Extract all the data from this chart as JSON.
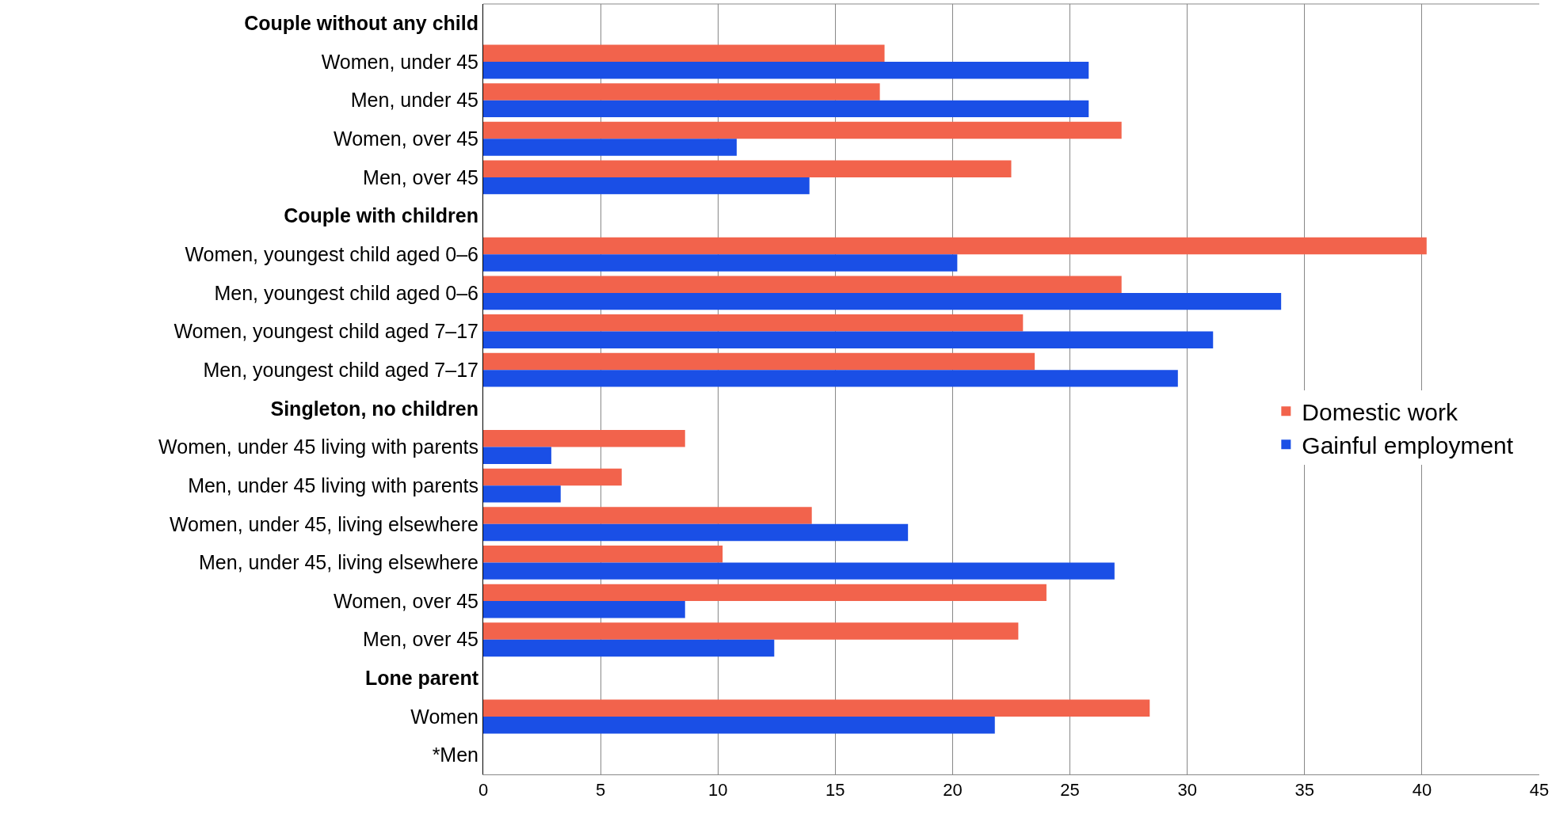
{
  "chart_data": {
    "type": "bar",
    "orientation": "horizontal",
    "categories": [
      "Couple without any child",
      "Women, under 45",
      "Men, under 45",
      "Women, over 45",
      "Men, over 45",
      "Couple with children",
      "Women, youngest child aged 0–6",
      "Men, youngest child aged 0–6",
      "Women, youngest child aged 7–17",
      "Men, youngest child aged 7–17",
      "Singleton, no children",
      "Women, under 45 living with parents",
      "Men, under 45 living with parents",
      "Women, under 45, living elsewhere",
      "Men, under 45, living elsewhere",
      "Women, over 45",
      "Men, over 45",
      "Lone parent",
      "Women",
      "*Men"
    ],
    "series": [
      {
        "name": "Domestic work",
        "color": "#f2634c",
        "values": [
          null,
          17.1,
          16.9,
          27.2,
          22.5,
          null,
          40.2,
          27.2,
          23.0,
          23.5,
          null,
          8.6,
          5.9,
          14.0,
          10.2,
          24.0,
          22.8,
          null,
          28.4,
          null
        ]
      },
      {
        "name": "Gainful employment",
        "color": "#1a4fe6",
        "values": [
          null,
          25.8,
          25.8,
          10.8,
          13.9,
          null,
          20.2,
          34.0,
          31.1,
          29.6,
          null,
          2.9,
          3.3,
          18.1,
          26.9,
          8.6,
          12.4,
          null,
          21.8,
          null
        ]
      }
    ],
    "xlim": [
      0,
      45
    ],
    "xticks": [
      0,
      5,
      10,
      15,
      20,
      25,
      30,
      35,
      40,
      45
    ],
    "grid": "x",
    "legend": "right"
  }
}
